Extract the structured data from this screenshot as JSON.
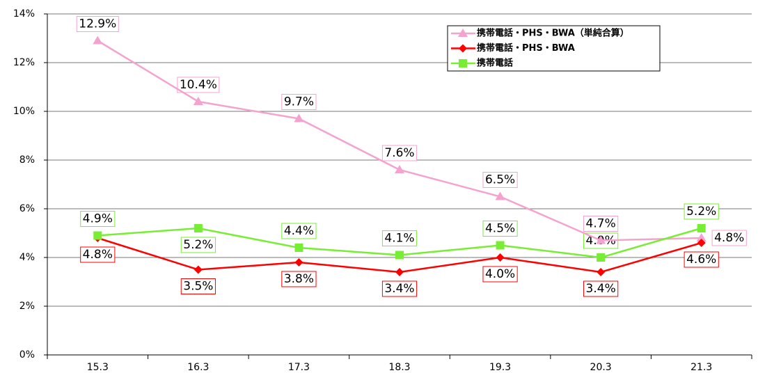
{
  "chart_data": {
    "type": "line",
    "categories": [
      "15.3",
      "16.3",
      "17.3",
      "18.3",
      "19.3",
      "20.3",
      "21.3"
    ],
    "series": [
      {
        "name": "携帯電話・PHS・BWA（単純合算）",
        "color": "#f4a3cf",
        "marker": "triangle",
        "values": [
          12.9,
          10.4,
          9.7,
          7.6,
          6.5,
          4.7,
          4.8
        ],
        "value_labels": [
          "12.9%",
          "10.4%",
          "9.7%",
          "7.6%",
          "6.5%",
          "4.7%",
          "4.8%"
        ]
      },
      {
        "name": "携帯電話・PHS・BWA",
        "color": "#ff0000",
        "marker": "diamond",
        "values": [
          4.8,
          3.5,
          3.8,
          3.4,
          4.0,
          3.4,
          4.6
        ],
        "value_labels": [
          "4.8%",
          "3.5%",
          "3.8%",
          "3.4%",
          "4.0%",
          "3.4%",
          "4.6%"
        ]
      },
      {
        "name": "携帯電話",
        "color": "#77ee33",
        "marker": "square",
        "values": [
          4.9,
          5.2,
          4.4,
          4.1,
          4.5,
          4.0,
          5.2
        ],
        "value_labels": [
          "4.9%",
          "5.2%",
          "4.4%",
          "4.1%",
          "4.5%",
          "4.0%",
          "5.2%"
        ]
      }
    ],
    "ylim": [
      0,
      14
    ],
    "yticks": [
      {
        "value": 0,
        "label": "0%"
      },
      {
        "value": 2,
        "label": "2%"
      },
      {
        "value": 4,
        "label": "4%"
      },
      {
        "value": 6,
        "label": "6%"
      },
      {
        "value": 8,
        "label": "8%"
      },
      {
        "value": 10,
        "label": "10%"
      },
      {
        "value": 12,
        "label": "12%"
      },
      {
        "value": 14,
        "label": "14%"
      }
    ],
    "grid": true,
    "legend": "upper right"
  }
}
